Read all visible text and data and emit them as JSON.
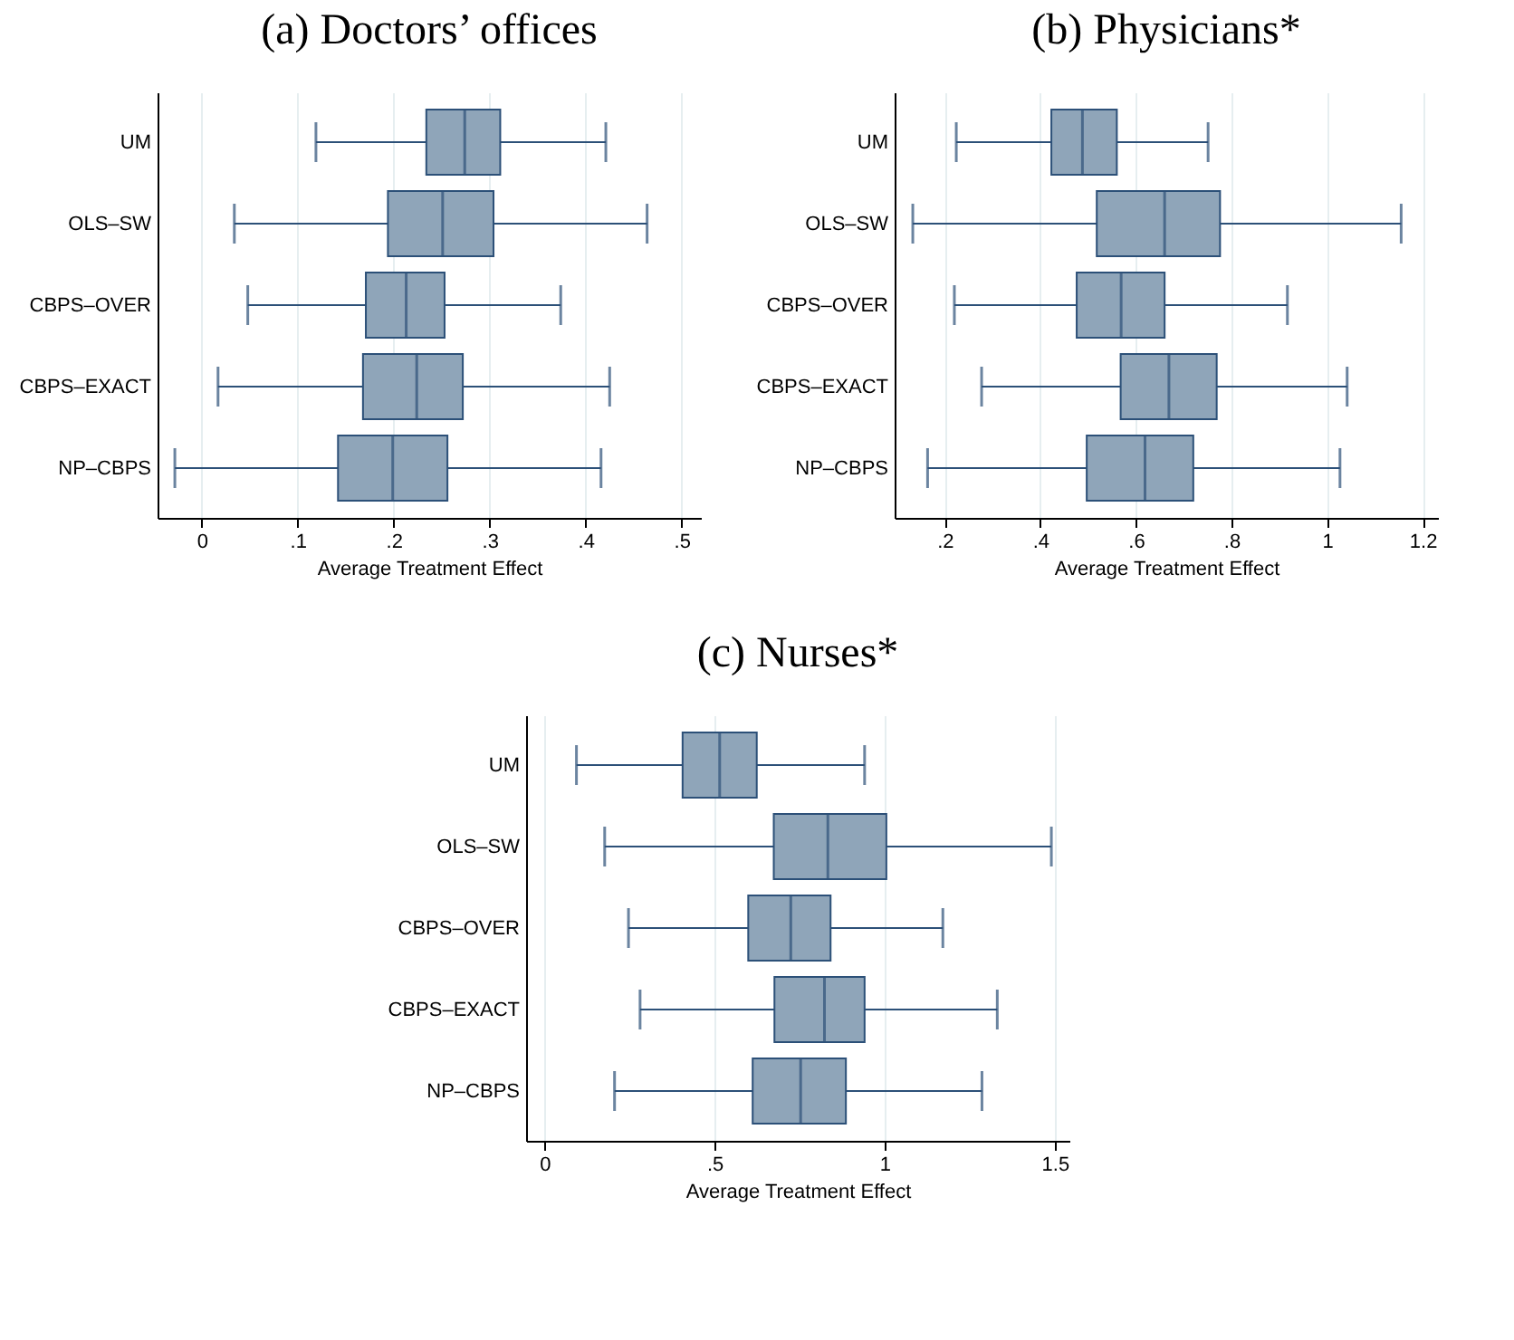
{
  "chart_data": [
    {
      "type": "box",
      "title": "(a) Doctors’ offices",
      "xlabel": "Average Treatment Effect",
      "orientation": "horizontal",
      "grid": "x",
      "categories": [
        "UM",
        "OLS–SW",
        "CBPS–OVER",
        "CBPS–EXACT",
        "NP–CBPS"
      ],
      "xlim": [
        -0.046,
        0.52
      ],
      "xticks": [
        0,
        {
          "value": 0.1,
          "label": ".1"
        },
        {
          "value": 0.2,
          "label": ".2"
        },
        {
          "value": 0.3,
          "label": ".3"
        },
        {
          "value": 0.4,
          "label": ".4"
        },
        {
          "value": 0.5,
          "label": ".5"
        }
      ],
      "series": [
        {
          "color": "#8fa5b9",
          "boxes": [
            {
              "low": 0.119,
              "q1": 0.234,
              "median": 0.274,
              "q3": 0.311,
              "high": 0.421
            },
            {
              "low": 0.034,
              "q1": 0.194,
              "median": 0.251,
              "q3": 0.304,
              "high": 0.464
            },
            {
              "low": 0.048,
              "q1": 0.171,
              "median": 0.213,
              "q3": 0.253,
              "high": 0.374
            },
            {
              "low": 0.017,
              "q1": 0.168,
              "median": 0.224,
              "q3": 0.272,
              "high": 0.425
            },
            {
              "low": -0.028,
              "q1": 0.142,
              "median": 0.199,
              "q3": 0.256,
              "high": 0.416
            }
          ]
        }
      ]
    },
    {
      "type": "box",
      "title": "(b) Physicians*",
      "xlabel": "Average Treatment Effect",
      "orientation": "horizontal",
      "grid": "x",
      "categories": [
        "UM",
        "OLS–SW",
        "CBPS–OVER",
        "CBPS–EXACT",
        "NP–CBPS"
      ],
      "xlim": [
        0.095,
        1.232
      ],
      "xticks": [
        {
          "value": 0.2,
          "label": ".2"
        },
        {
          "value": 0.4,
          "label": ".4"
        },
        {
          "value": 0.6,
          "label": ".6"
        },
        {
          "value": 0.8,
          "label": ".8"
        },
        1,
        1.2
      ],
      "series": [
        {
          "color": "#8fa5b9",
          "boxes": [
            {
              "low": 0.224,
              "q1": 0.423,
              "median": 0.488,
              "q3": 0.56,
              "high": 0.751
            },
            {
              "low": 0.133,
              "q1": 0.518,
              "median": 0.66,
              "q3": 0.776,
              "high": 1.155
            },
            {
              "low": 0.22,
              "q1": 0.476,
              "median": 0.569,
              "q3": 0.66,
              "high": 0.917
            },
            {
              "low": 0.277,
              "q1": 0.568,
              "median": 0.669,
              "q3": 0.769,
              "high": 1.042
            },
            {
              "low": 0.164,
              "q1": 0.497,
              "median": 0.619,
              "q3": 0.72,
              "high": 1.027
            }
          ]
        }
      ]
    },
    {
      "type": "box",
      "title": "(c) Nurses*",
      "xlabel": "Average Treatment Effect",
      "orientation": "horizontal",
      "grid": "x",
      "categories": [
        "UM",
        "OLS–SW",
        "CBPS–OVER",
        "CBPS–EXACT",
        "NP–CBPS"
      ],
      "xlim": [
        -0.054,
        1.543
      ],
      "xticks": [
        0,
        {
          "value": 0.5,
          "label": ".5"
        },
        1,
        1.5
      ],
      "series": [
        {
          "color": "#8fa5b9",
          "boxes": [
            {
              "low": 0.094,
              "q1": 0.406,
              "median": 0.515,
              "q3": 0.624,
              "high": 0.941
            },
            {
              "low": 0.177,
              "q1": 0.674,
              "median": 0.833,
              "q3": 1.005,
              "high": 1.49
            },
            {
              "low": 0.247,
              "q1": 0.599,
              "median": 0.724,
              "q3": 0.841,
              "high": 1.171
            },
            {
              "low": 0.281,
              "q1": 0.676,
              "median": 0.823,
              "q3": 0.941,
              "high": 1.331
            },
            {
              "low": 0.206,
              "q1": 0.612,
              "median": 0.753,
              "q3": 0.886,
              "high": 1.286
            }
          ]
        }
      ]
    }
  ]
}
